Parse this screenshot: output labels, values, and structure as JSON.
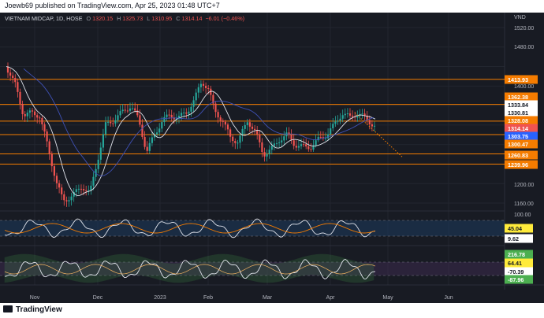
{
  "header": {
    "text": "Joewb69 published on TradingView.com, Apr 25, 2023 01:48 UTC+7"
  },
  "symbol": {
    "name": "VIETNAM MIDCAP, 1D, HOSE",
    "open_key": "O",
    "open": "1320.15",
    "high_key": "H",
    "high": "1325.73",
    "low_key": "L",
    "low": "1310.95",
    "close_key": "C",
    "close": "1314.14",
    "change": "−6.01 (−0.46%)"
  },
  "currency_label": "VND",
  "y_ticks": [
    "1520.00",
    "1480.00",
    "1400.00",
    "1200.00",
    "1160.00",
    "100.00"
  ],
  "price_labels": [
    {
      "text": "1413.93",
      "bg": "#f57c00",
      "fg": "#ffffff"
    },
    {
      "text": "1362.38",
      "bg": "#f57c00",
      "fg": "#ffffff"
    },
    {
      "text": "1333.84",
      "bg": "#ffffff",
      "fg": "#131722"
    },
    {
      "text": "1330.81",
      "bg": "#ffffff",
      "fg": "#131722"
    },
    {
      "text": "1328.08",
      "bg": "#f57c00",
      "fg": "#ffffff"
    },
    {
      "text": "1314.14",
      "bg": "#ef5350",
      "fg": "#ffffff"
    },
    {
      "text": "1303.75",
      "bg": "#2962ff",
      "fg": "#ffffff"
    },
    {
      "text": "1300.47",
      "bg": "#f57c00",
      "fg": "#ffffff"
    },
    {
      "text": "1260.83",
      "bg": "#f57c00",
      "fg": "#ffffff"
    },
    {
      "text": "1239.96",
      "bg": "#f57c00",
      "fg": "#ffffff"
    }
  ],
  "osc1_labels": [
    {
      "text": "45.04",
      "bg": "#ffeb3b",
      "fg": "#131722"
    },
    {
      "text": "9.62",
      "bg": "#ffffff",
      "fg": "#131722"
    }
  ],
  "osc2_labels": [
    {
      "text": "216.78",
      "bg": "#4caf50",
      "fg": "#ffffff"
    },
    {
      "text": "64.41",
      "bg": "#ffeb3b",
      "fg": "#131722"
    },
    {
      "text": "-70.39",
      "bg": "#ffffff",
      "fg": "#131722"
    },
    {
      "text": "-87.96",
      "bg": "#4caf50",
      "fg": "#ffffff"
    }
  ],
  "x_labels": [
    "Nov",
    "Dec",
    "2023",
    "Feb",
    "Mar",
    "Apr",
    "May",
    "Jun"
  ],
  "footer": {
    "brand": "TradingView"
  },
  "colors": {
    "background": "#181b23",
    "up": "#26a69a",
    "down": "#ef5350",
    "level_line": "#f57c00",
    "ma_white": "#e0e3eb",
    "ma_blue": "#3f51b5"
  },
  "chart_data": {
    "type": "candlestick",
    "title": "VIETNAM MIDCAP, 1D, HOSE",
    "ylabel": "VND",
    "ylim": [
      1140,
      1530
    ],
    "horizontal_levels": [
      1413.93,
      1362.38,
      1328.08,
      1300.47,
      1260.83,
      1239.96
    ],
    "last_close": 1314.14,
    "x": [
      "Nov",
      "Dec",
      "2023",
      "Feb",
      "Mar",
      "Apr",
      "May",
      "Jun"
    ]
  }
}
